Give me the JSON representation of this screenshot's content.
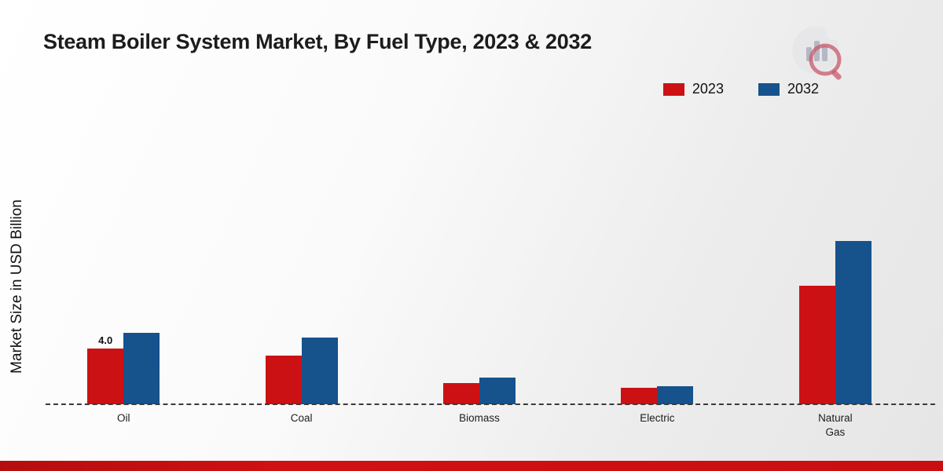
{
  "title": "Steam Boiler System Market, By Fuel Type, 2023 & 2032",
  "ylabel": "Market Size in USD Billion",
  "icons": {
    "brand_logo": "bar-chart-magnifier-logo"
  },
  "colors": {
    "series_2023": "#cc1114",
    "series_2032": "#16528c",
    "footer_bar": "#c90f11"
  },
  "chart_data": {
    "type": "bar",
    "title": "Steam Boiler System Market, By Fuel Type, 2023 & 2032",
    "xlabel": "",
    "ylabel": "Market Size in USD Billion",
    "categories": [
      "Oil",
      "Coal",
      "Biomass",
      "Electric",
      "Natural Gas"
    ],
    "series": [
      {
        "name": "2023",
        "color": "#cc1114",
        "values": [
          4.0,
          3.5,
          1.5,
          1.2,
          8.5
        ]
      },
      {
        "name": "2032",
        "color": "#16528c",
        "values": [
          5.1,
          4.8,
          1.9,
          1.3,
          11.7
        ]
      }
    ],
    "bar_labels": [
      {
        "series": "2023",
        "category": "Oil",
        "text": "4.0"
      }
    ],
    "ylim": [
      0,
      12
    ],
    "grid": false,
    "axis_style": "dashed-baseline-only",
    "legend_position": "top-right"
  }
}
